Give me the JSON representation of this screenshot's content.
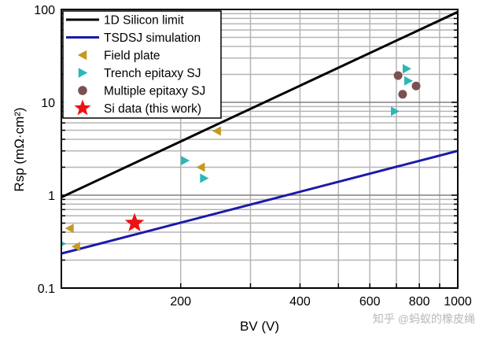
{
  "chart_data": {
    "type": "scatter",
    "title": "",
    "xlabel": "BV (V)",
    "ylabel": "Rsp (mΩ·cm²)",
    "xscale": "log",
    "yscale": "log",
    "xlim": [
      100,
      1000
    ],
    "ylim": [
      0.1,
      100
    ],
    "grid": true,
    "legend_position": "top-left",
    "x_ticks": [
      200,
      400,
      600,
      800,
      1000
    ],
    "y_ticks": [
      0.1,
      1,
      10,
      100
    ],
    "x_tick_labels": [
      "200",
      "400",
      "600",
      "800",
      "1000"
    ],
    "y_tick_labels": [
      "0.1",
      "1",
      "10",
      "100"
    ],
    "series": [
      {
        "name": "1D Silicon limit",
        "kind": "line",
        "color": "#000000",
        "x": [
          100,
          1000
        ],
        "y": [
          0.95,
          94
        ]
      },
      {
        "name": "TSDSJ simulation",
        "kind": "line",
        "color": "#1a1aa8",
        "x": [
          100,
          1000
        ],
        "y": [
          0.235,
          3.0
        ]
      },
      {
        "name": "Field plate",
        "kind": "marker",
        "marker": "triangle-left",
        "color": "#c49a22",
        "x": [
          105,
          109,
          225,
          247
        ],
        "y": [
          0.44,
          0.28,
          2.0,
          4.9
        ]
      },
      {
        "name": "Trench epitaxy SJ",
        "kind": "marker",
        "marker": "triangle-right",
        "color": "#2ab8b8",
        "x": [
          100,
          205,
          229,
          694,
          743,
          750
        ],
        "y": [
          0.3,
          2.36,
          1.52,
          8.0,
          23,
          17
        ]
      },
      {
        "name": "Multiple epitaxy SJ",
        "kind": "marker",
        "marker": "circle",
        "color": "#7a5050",
        "x": [
          707,
          726,
          785
        ],
        "y": [
          19.4,
          12.2,
          15
        ]
      },
      {
        "name": "Si data (this work)",
        "kind": "marker",
        "marker": "star",
        "color": "#ee1111",
        "x": [
          153
        ],
        "y": [
          0.5
        ]
      }
    ]
  },
  "watermark": "知乎 @蚂蚁的橡皮绳"
}
